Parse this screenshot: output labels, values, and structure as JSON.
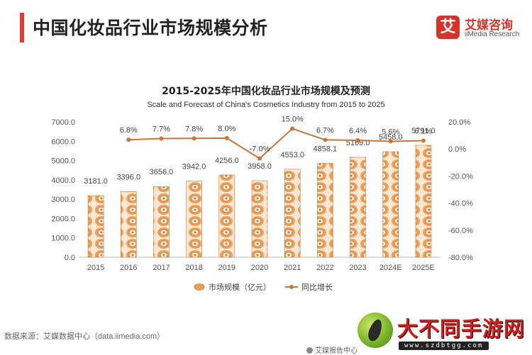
{
  "header": {
    "title": "中国化妆品行业市场规模分析"
  },
  "brand": {
    "logo_char": "艾",
    "name": "艾媒咨询",
    "sub": "iiMedia Research"
  },
  "colors": {
    "accent": "#e23b33",
    "bar": "#e8a15c",
    "bar_dark": "#c97a35",
    "line": "#c8753a",
    "grid": "#e6e6e6"
  },
  "chart_data": {
    "type": "bar+line",
    "title": "2015-2025年中国化妆品行业市场规模及预测",
    "subtitle": "Scale and Forecast of China's Cosmetics Industry from 2015 to 2025",
    "categories": [
      "2015",
      "2016",
      "2017",
      "2018",
      "2019",
      "2020",
      "2021",
      "2022",
      "2023",
      "2024E",
      "2025E"
    ],
    "series": [
      {
        "name": "市场规模（亿元）",
        "type": "bar",
        "axis": "left",
        "values": [
          3181.0,
          3396.0,
          3656.0,
          3942.0,
          4256.0,
          3958.0,
          4553.0,
          4858.1,
          5169.0,
          5458.0,
          5791.0
        ],
        "labels": [
          "3181.0",
          "3396.0",
          "3656.0",
          "3942.0",
          "4256.0",
          "3958.0",
          "4553.0",
          "4858.1",
          "5169.0",
          "5458.0",
          "5791.0"
        ]
      },
      {
        "name": "同比增长",
        "type": "line",
        "axis": "right",
        "values": [
          null,
          6.8,
          7.7,
          7.8,
          8.0,
          -7.0,
          15.0,
          6.7,
          6.4,
          5.6,
          6.1
        ],
        "labels": [
          "",
          "6.8%",
          "7.7%",
          "7.8%",
          "8.0%",
          "-7.0%",
          "15.0%",
          "6.7%",
          "6.4%",
          "5.6%",
          "6.1%"
        ]
      }
    ],
    "y_left": {
      "ylim": [
        0,
        7000
      ],
      "ticks": [
        "0.0",
        "1000.0",
        "2000.0",
        "3000.0",
        "4000.0",
        "5000.0",
        "6000.0",
        "7000.0"
      ]
    },
    "y_right": {
      "ylim": [
        -80,
        20
      ],
      "ticks": [
        "-80.0%",
        "-60.0%",
        "-40.0%",
        "-20.0%",
        "0.0%",
        "20.0%"
      ]
    },
    "legend": "bottom-center",
    "grid": false
  },
  "footer": {
    "source": "数据来源：艾媒数据中心（data.iimedia.com）",
    "center": "艾媒报告中心"
  },
  "watermark": {
    "text": "大不同手游网",
    "url": "www.szdbtgg.com"
  }
}
